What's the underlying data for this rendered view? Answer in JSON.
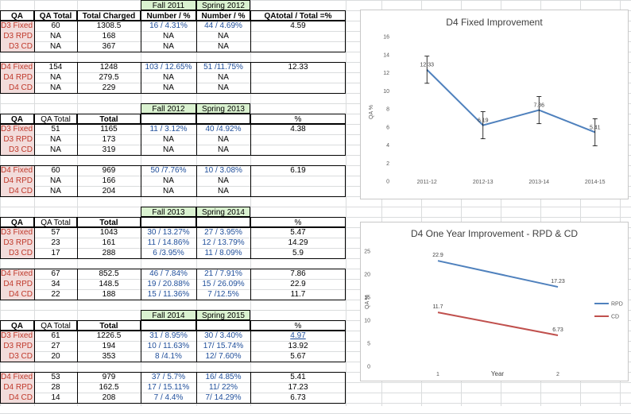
{
  "blocks": [
    {
      "semester_headers": [
        "Fall 2011",
        "Spring 2012"
      ],
      "header": [
        "QA",
        "QA Total",
        "Total Charged",
        "Number / %",
        "Number / %",
        "QAtotal / Total =%"
      ],
      "groups": [
        [
          [
            "D3 Fixed",
            "60",
            "1308.5",
            "16 / 4.31%",
            "44 / 4.69%",
            "4.59"
          ],
          [
            "D3 RPD",
            "NA",
            "168",
            "NA",
            "NA",
            ""
          ],
          [
            "D3 CD",
            "NA",
            "367",
            "NA",
            "NA",
            ""
          ]
        ],
        [
          [
            "D4 Fixed",
            "154",
            "1248",
            "103 / 12.65%",
            "51 /11.75%",
            "12.33"
          ],
          [
            "D4 RPD",
            "NA",
            "279.5",
            "NA",
            "NA",
            ""
          ],
          [
            "D4 CD",
            "NA",
            "229",
            "NA",
            "NA",
            ""
          ]
        ]
      ]
    },
    {
      "semester_headers": [
        "Fall 2012",
        "Spring 2013"
      ],
      "header": [
        "QA",
        "QA Total",
        "Total",
        "",
        "",
        "%"
      ],
      "groups": [
        [
          [
            "D3 Fixed",
            "51",
            "1165",
            "11 / 3.12%",
            "40 /4.92%",
            "4.38"
          ],
          [
            "D3 RPD",
            "NA",
            "173",
            "NA",
            "NA",
            ""
          ],
          [
            "D3 CD",
            "NA",
            "319",
            "NA",
            "NA",
            ""
          ]
        ],
        [
          [
            "D4 Fixed",
            "60",
            "969",
            "50 /7.76%",
            "10 / 3.08%",
            "6.19"
          ],
          [
            "D4 RPD",
            "NA",
            "166",
            "NA",
            "NA",
            ""
          ],
          [
            "D4 CD",
            "NA",
            "204",
            "NA",
            "NA",
            ""
          ]
        ]
      ]
    },
    {
      "semester_headers": [
        "Fall 2013",
        "Spring 2014"
      ],
      "header": [
        "QA",
        "QA Total",
        "Total",
        "",
        "",
        "%"
      ],
      "groups": [
        [
          [
            "D3 Fixed",
            "57",
            "1043",
            "30 / 13.27%",
            "27 / 3.95%",
            "5.47"
          ],
          [
            "D3 RPD",
            "23",
            "161",
            "11 / 14.86%",
            "12 / 13.79%",
            "14.29"
          ],
          [
            "D3 CD",
            "17",
            "288",
            "6 /3.95%",
            "11 / 8.09%",
            "5.9"
          ]
        ],
        [
          [
            "D4 Fixed",
            "67",
            "852.5",
            "46 / 7.84%",
            "21 / 7.91%",
            "7.86"
          ],
          [
            "D4 RPD",
            "34",
            "148.5",
            "19 / 20.88%",
            "15 / 26.09%",
            "22.9"
          ],
          [
            "D4 CD",
            "22",
            "188",
            "15 / 11.36%",
            "7 /12.5%",
            "11.7"
          ]
        ]
      ]
    },
    {
      "semester_headers": [
        "Fall 2014",
        "Spring 2015"
      ],
      "header": [
        "QA",
        "QA Total",
        "Total",
        "",
        "",
        "%"
      ],
      "groups": [
        [
          [
            "D3 Fixed",
            "61",
            "1226.5",
            "31 / 8.95%",
            "30 / 3.40%",
            "4.97"
          ],
          [
            "D3 RPD",
            "27",
            "194",
            "10 / 11.63%",
            "17/ 15.74%",
            "13.92"
          ],
          [
            "D3 CD",
            "20",
            "353",
            "8 /4.1%",
            "12/ 7.60%",
            "5.67"
          ]
        ],
        [
          [
            "D4 Fixed",
            "53",
            "979",
            "37 / 5.7%",
            "16/ 4.85%",
            "5.41"
          ],
          [
            "D4 RPD",
            "28",
            "162.5",
            "17 / 15.11%",
            "11/ 22%",
            "17.23"
          ],
          [
            "D4 CD",
            "14",
            "208",
            "7 / 4.4%",
            "7/ 14.29%",
            "6.73"
          ]
        ]
      ]
    }
  ],
  "styles": {
    "label_bg": "#f2dcdb",
    "label_fg": "#c0392b",
    "semester_bg": "#daf2d0",
    "number_fg": "#1f4e9a",
    "series1": "#4f81bd",
    "series2": "#c0504d"
  },
  "chart_data": [
    {
      "type": "line",
      "title": "D4 Fixed Improvement",
      "ylabel": "QA %",
      "categories": [
        "2011-12",
        "2012-13",
        "2013-14",
        "2014-15"
      ],
      "series": [
        {
          "values": [
            12.33,
            6.19,
            7.86,
            5.41
          ]
        }
      ],
      "error_bars": [
        1.5,
        1.5,
        1.5,
        1.5
      ],
      "data_labels": [
        "12.33",
        "6.19",
        "7.86",
        "5.41"
      ],
      "yticks": [
        "0",
        "2",
        "4",
        "6",
        "8",
        "10",
        "12",
        "14",
        "16"
      ],
      "ylim": [
        0,
        16
      ],
      "grid": false
    },
    {
      "type": "line",
      "title": "D4 One Year Improvement - RPD & CD",
      "xlabel": "Year",
      "ylabel": "QA %",
      "categories": [
        "1",
        "2"
      ],
      "series": [
        {
          "name": "RPD",
          "values": [
            22.9,
            17.23
          ],
          "labels": [
            "22.9",
            "17.23"
          ]
        },
        {
          "name": "CD",
          "values": [
            11.7,
            6.73
          ],
          "labels": [
            "11.7",
            "6.73"
          ]
        }
      ],
      "yticks": [
        "0",
        "5",
        "10",
        "15",
        "20",
        "25"
      ],
      "ylim": [
        0,
        25
      ],
      "legend": "right",
      "grid": false
    }
  ]
}
